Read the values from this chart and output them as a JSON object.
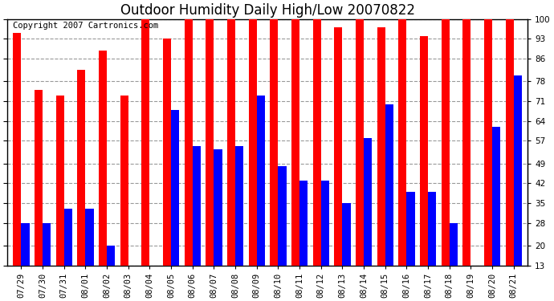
{
  "title": "Outdoor Humidity Daily High/Low 20070822",
  "copyright": "Copyright 2007 Cartronics.com",
  "dates": [
    "07/29",
    "07/30",
    "07/31",
    "08/01",
    "08/02",
    "08/03",
    "08/04",
    "08/05",
    "08/06",
    "08/07",
    "08/08",
    "08/09",
    "08/10",
    "08/11",
    "08/12",
    "08/13",
    "08/14",
    "08/15",
    "08/16",
    "08/17",
    "08/18",
    "08/19",
    "08/20",
    "08/21"
  ],
  "highs": [
    95,
    75,
    73,
    82,
    89,
    73,
    100,
    93,
    100,
    100,
    100,
    100,
    100,
    100,
    100,
    97,
    100,
    97,
    100,
    94,
    100,
    100,
    100,
    100
  ],
  "lows": [
    28,
    28,
    33,
    33,
    20,
    13,
    13,
    68,
    55,
    54,
    55,
    73,
    48,
    43,
    43,
    35,
    58,
    70,
    39,
    39,
    28,
    13,
    62,
    80
  ],
  "high_color": "#ff0000",
  "low_color": "#0000ff",
  "bg_color": "#ffffff",
  "grid_color": "#999999",
  "yticks": [
    13,
    20,
    28,
    35,
    42,
    49,
    57,
    64,
    71,
    78,
    86,
    93,
    100
  ],
  "ymin": 13,
  "ymax": 100,
  "bar_width": 0.38,
  "title_fontsize": 12,
  "tick_fontsize": 7.5,
  "copyright_fontsize": 7.5,
  "figwidth": 6.9,
  "figheight": 3.75,
  "dpi": 100
}
